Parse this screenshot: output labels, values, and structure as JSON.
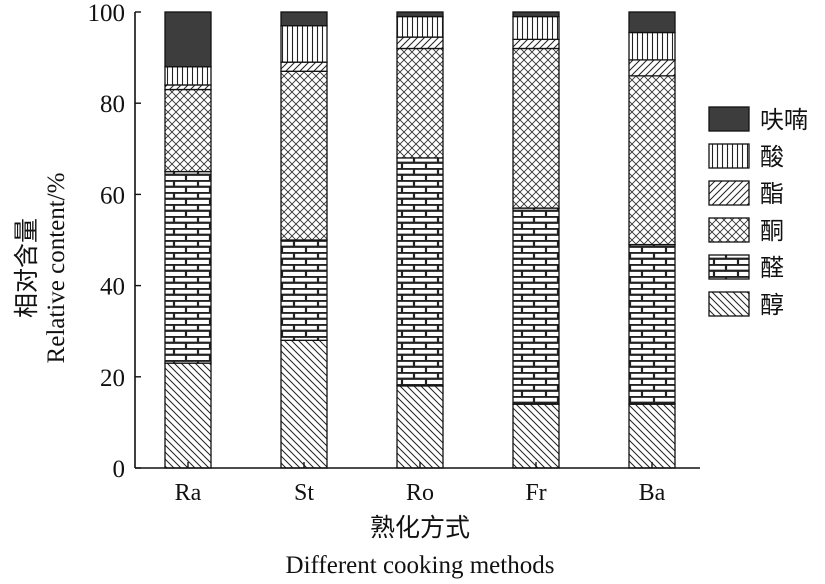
{
  "chart_data": {
    "type": "bar",
    "stacked": true,
    "categories": [
      "Ra",
      "St",
      "Ro",
      "Fr",
      "Ba"
    ],
    "ylim": [
      0,
      100
    ],
    "yticks": [
      0,
      20,
      40,
      60,
      80,
      100
    ],
    "xlabel_cn": "熟化方式",
    "xlabel_en": "Different cooking methods",
    "ylabel_cn": "相对含量",
    "ylabel_en": "Relative content/%",
    "legend_position": "right",
    "series": [
      {
        "name": "醇",
        "pattern": "diagonal-back",
        "values": [
          23,
          28,
          18,
          14,
          14
        ]
      },
      {
        "name": "醛",
        "pattern": "brick",
        "values": [
          42,
          22,
          50,
          43,
          35
        ]
      },
      {
        "name": "酮",
        "pattern": "crosshatch",
        "values": [
          18,
          37,
          24,
          35,
          37
        ]
      },
      {
        "name": "酯",
        "pattern": "diagonal-forward",
        "values": [
          1,
          2,
          2.5,
          2,
          3.5
        ]
      },
      {
        "name": "酸",
        "pattern": "vertical",
        "values": [
          4,
          8,
          4.5,
          5,
          6
        ]
      },
      {
        "name": "呋喃",
        "pattern": "solid",
        "values": [
          12,
          3,
          1,
          1,
          4.5
        ]
      }
    ],
    "colors": {
      "frame": "#111111",
      "solid": "#3d3d3d",
      "background": "#ffffff"
    }
  }
}
